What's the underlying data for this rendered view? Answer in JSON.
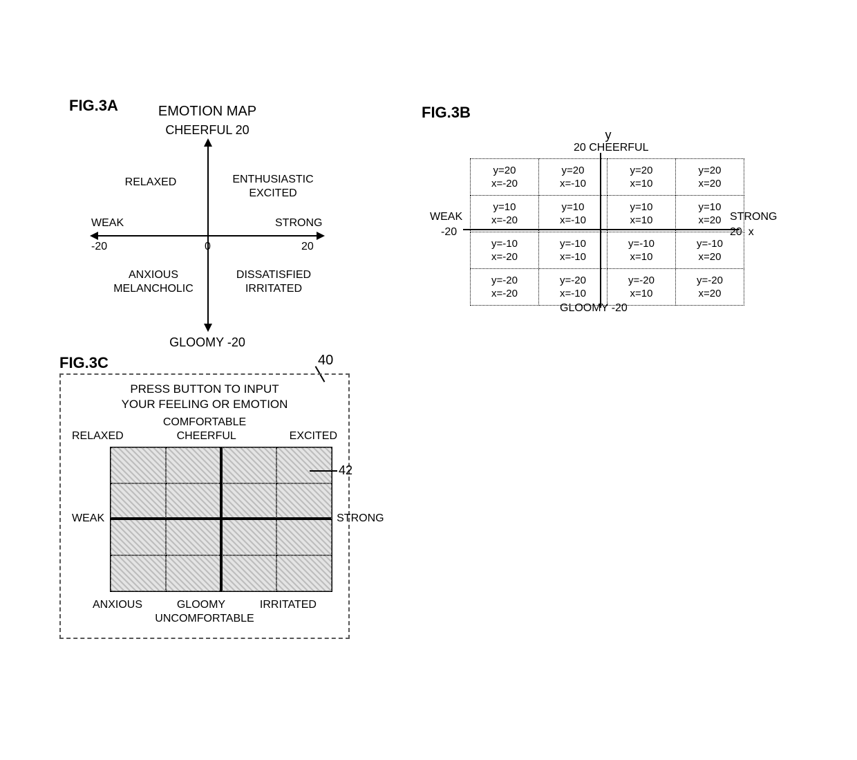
{
  "background_color": "#ffffff",
  "text_color": "#000000",
  "grid_fill_pattern_colors": [
    "#bdbdbd",
    "#e4e4e4"
  ],
  "border_dotted_color": "#000000",
  "panel_dash_color": "#555555",
  "fig3a": {
    "label": "FIG.3A",
    "title": "EMOTION MAP",
    "type": "quadrant-diagram",
    "axes": {
      "x": {
        "min_label": "WEAK",
        "min_value": "-20",
        "max_label": "STRONG",
        "max_value": "20",
        "origin_label": "0"
      },
      "y": {
        "max_label": "CHEERFUL 20",
        "min_label": "GLOOMY -20"
      }
    },
    "quadrants": {
      "top_left": "RELAXED",
      "top_right": "ENTHUSIASTIC\nEXCITED",
      "bottom_left": "ANXIOUS\nMELANCHOLIC",
      "bottom_right": "DISSATISFIED\nIRRITATED"
    },
    "axis_color": "#000000"
  },
  "fig3b": {
    "label": "FIG.3B",
    "type": "coordinate-table",
    "y_caption": "y",
    "x_caption": "x",
    "top": {
      "value": "20",
      "word": "CHEERFUL"
    },
    "bottom": {
      "word": "GLOOMY",
      "value": "-20"
    },
    "left": {
      "word": "WEAK",
      "value": "-20"
    },
    "right": {
      "word": "STRONG",
      "value": "20"
    },
    "cell_border_color": "#000000",
    "cells": [
      [
        {
          "y": "y=20",
          "x": "x=-20"
        },
        {
          "y": "y=20",
          "x": "x=-10"
        },
        {
          "y": "y=20",
          "x": "x=10"
        },
        {
          "y": "y=20",
          "x": "x=20"
        }
      ],
      [
        {
          "y": "y=10",
          "x": "x=-20"
        },
        {
          "y": "y=10",
          "x": "x=-10"
        },
        {
          "y": "y=10",
          "x": "x=10"
        },
        {
          "y": "y=10",
          "x": "x=20"
        }
      ],
      [
        {
          "y": "y=-10",
          "x": "x=-20"
        },
        {
          "y": "y=-10",
          "x": "x=-10"
        },
        {
          "y": "y=-10",
          "x": "x=10"
        },
        {
          "y": "y=-10",
          "x": "x=20"
        }
      ],
      [
        {
          "y": "y=-20",
          "x": "x=-20"
        },
        {
          "y": "y=-20",
          "x": "x=-10"
        },
        {
          "y": "y=-20",
          "x": "x=10"
        },
        {
          "y": "y=-20",
          "x": "x=20"
        }
      ]
    ]
  },
  "fig3c": {
    "label": "FIG.3C",
    "type": "interactive-emotion-grid",
    "callout_panel": "40",
    "callout_grid": "42",
    "prompt_line1": "PRESS BUTTON TO INPUT",
    "prompt_line2": "YOUR FEELING OR EMOTION",
    "top_outer": "COMFORTABLE",
    "top_left": "RELAXED",
    "top_center": "CHEERFUL",
    "top_right": "EXCITED",
    "left": "WEAK",
    "right": "STRONG",
    "bottom_left": "ANXIOUS",
    "bottom_center": "GLOOMY",
    "bottom_right": "IRRITATED",
    "bottom_outer": "UNCOMFORTABLE",
    "grid": {
      "rows": 4,
      "cols": 4,
      "cell_fill": "hatched-gray",
      "thick_axis_color": "#000000"
    }
  }
}
